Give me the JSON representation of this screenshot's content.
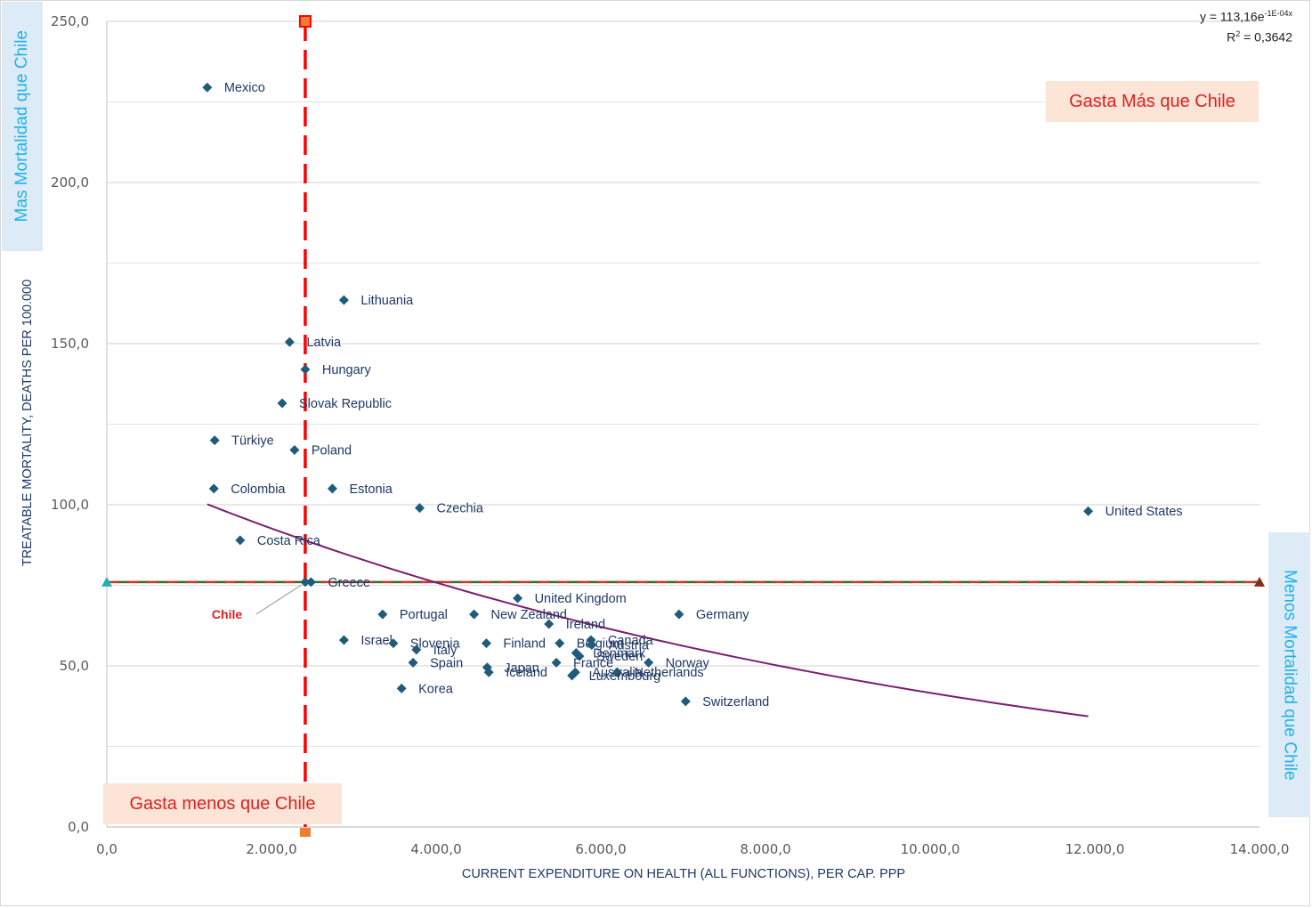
{
  "chart_data": {
    "type": "scatter",
    "xlabel": "CURRENT EXPENDITURE ON HEALTH (ALL FUNCTIONS), PER CAP. PPP",
    "ylabel": "TREATABLE MORTALITY, DEATHS PER 100.000",
    "xlim": [
      0,
      14000
    ],
    "ylim": [
      0,
      250
    ],
    "x_ticks": [
      "0,0",
      "2.000,0",
      "4.000,0",
      "6.000,0",
      "8.000,0",
      "10.000,0",
      "12.000,0",
      "14.000,0"
    ],
    "y_ticks": [
      "0,0",
      "50,0",
      "100,0",
      "150,0",
      "200,0",
      "250,0"
    ],
    "grid": true,
    "points": [
      {
        "label": "Mexico",
        "x": 1220,
        "y": 229.5
      },
      {
        "label": "Lithuania",
        "x": 2880,
        "y": 163.5
      },
      {
        "label": "Latvia",
        "x": 2220,
        "y": 150.5
      },
      {
        "label": "Hungary",
        "x": 2410,
        "y": 142
      },
      {
        "label": "Slovak Republic",
        "x": 2130,
        "y": 131.5
      },
      {
        "label": "Türkiye",
        "x": 1310,
        "y": 120
      },
      {
        "label": "Poland",
        "x": 2280,
        "y": 117
      },
      {
        "label": "Colombia",
        "x": 1300,
        "y": 105
      },
      {
        "label": "Estonia",
        "x": 2740,
        "y": 105
      },
      {
        "label": "Czechia",
        "x": 3800,
        "y": 99
      },
      {
        "label": "United States",
        "x": 11920,
        "y": 98
      },
      {
        "label": "Costa Rica",
        "x": 1620,
        "y": 89
      },
      {
        "label": "Greece",
        "x": 2480,
        "y": 76
      },
      {
        "label": "Chile",
        "x": 2410,
        "y": 76
      },
      {
        "label": "United Kingdom",
        "x": 4990,
        "y": 71
      },
      {
        "label": "Portugal",
        "x": 3350,
        "y": 66
      },
      {
        "label": "New Zealand",
        "x": 4460,
        "y": 66
      },
      {
        "label": "Germany",
        "x": 6950,
        "y": 66
      },
      {
        "label": "Ireland",
        "x": 5370,
        "y": 63
      },
      {
        "label": "Israel",
        "x": 2880,
        "y": 58
      },
      {
        "label": "Slovenia",
        "x": 3480,
        "y": 57
      },
      {
        "label": "Finland",
        "x": 4610,
        "y": 57
      },
      {
        "label": "Belgium",
        "x": 5500,
        "y": 57
      },
      {
        "label": "Canada",
        "x": 5880,
        "y": 58
      },
      {
        "label": "Austria",
        "x": 5890,
        "y": 56.5
      },
      {
        "label": "Italy",
        "x": 3760,
        "y": 55
      },
      {
        "label": "Denmark",
        "x": 5700,
        "y": 54
      },
      {
        "label": "Sweden",
        "x": 5740,
        "y": 53
      },
      {
        "label": "Spain",
        "x": 3720,
        "y": 51
      },
      {
        "label": "France",
        "x": 5460,
        "y": 51
      },
      {
        "label": "Norway",
        "x": 6580,
        "y": 51
      },
      {
        "label": "Japan",
        "x": 4620,
        "y": 49.5
      },
      {
        "label": "Iceland",
        "x": 4640,
        "y": 48
      },
      {
        "label": "Australia",
        "x": 5690,
        "y": 48
      },
      {
        "label": "Netherlands",
        "x": 6200,
        "y": 48
      },
      {
        "label": "Luxembourg",
        "x": 5650,
        "y": 47
      },
      {
        "label": "Korea",
        "x": 3580,
        "y": 43
      },
      {
        "label": "Switzerland",
        "x": 7030,
        "y": 39
      }
    ],
    "trendline": {
      "type": "exponential",
      "a": 113.16,
      "b": -0.0001,
      "x_range": [
        1220,
        11920
      ]
    },
    "reference_lines": {
      "chile_x": 2410,
      "chile_y": 76
    }
  },
  "equation": {
    "line1_prefix": "y = 113,16e",
    "line1_exp": "-1E-04x",
    "line2_prefix": "R",
    "line2_exp": "2",
    "line2_suffix": " = 0,3642"
  },
  "callouts": {
    "gasta_mas": "Gasta Más que Chile",
    "gasta_menos": "Gasta menos  que Chile",
    "mas_mortalidad": "Mas Mortalidad que Chile",
    "menos_mortalidad": "Menos Mortalidad que Chile",
    "chile_label": "Chile"
  },
  "colors": {
    "marker": "#1f5c7a",
    "trend": "#7b1e6f",
    "chile_vline": "#ff0000",
    "chile_hline": "#c0392b",
    "hline_dash2": "#2e6b2e",
    "grid": "#d9d9d9"
  }
}
